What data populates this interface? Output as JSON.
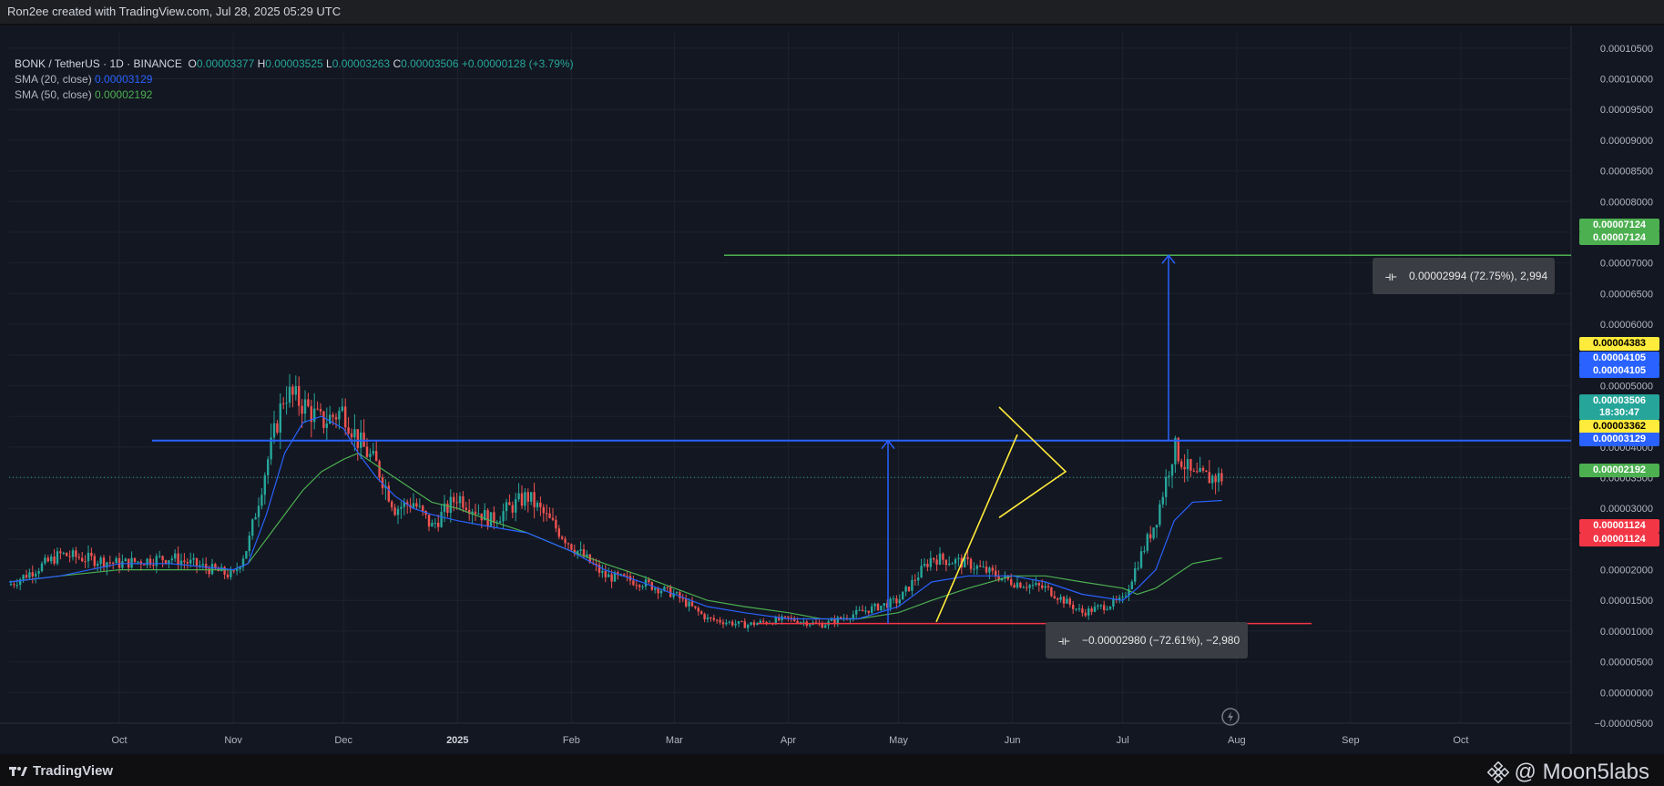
{
  "header": {
    "title": "Ron2ee created with TradingView.com, Jul 28, 2025 05:29 UTC"
  },
  "legend": {
    "symbol": "BONK / TetherUS · 1D · BINANCE",
    "o_label": "O",
    "o_value": "0.00003377",
    "h_label": "H",
    "h_value": "0.00003525",
    "l_label": "L",
    "l_value": "0.00003263",
    "c_label": "C",
    "c_value": "0.00003506",
    "change": "+0.00000128 (+3.79%)",
    "sma20_label": "SMA (20, close)",
    "sma20_value": "0.00003129",
    "sma50_label": "SMA (50, close)",
    "sma50_value": "0.00002192"
  },
  "colors": {
    "up": "#26a69a",
    "down": "#ef5350",
    "sma20": "#2962ff",
    "sma50": "#4caf50",
    "blue_line": "#2962ff",
    "green_line": "#4caf50",
    "red_line": "#f23645",
    "triangle": "#ffeb3b"
  },
  "price_tags": [
    {
      "text": "0.00007124",
      "bg": "#4caf50",
      "fg": "#ffffff"
    },
    {
      "text": "0.00007124",
      "bg": "#4caf50",
      "fg": "#ffffff"
    },
    {
      "text": "0.00004383",
      "bg": "#ffeb3b",
      "fg": "#000000"
    },
    {
      "text": "0.00004105",
      "bg": "#2962ff",
      "fg": "#ffffff"
    },
    {
      "text": "0.00004105",
      "bg": "#2962ff",
      "fg": "#ffffff"
    },
    {
      "text": "0.00003506",
      "bg": "#26a69a",
      "fg": "#ffffff"
    },
    {
      "text": "18:30:47",
      "bg": "#26a69a",
      "fg": "#ffffff"
    },
    {
      "text": "0.00003362",
      "bg": "#ffeb3b",
      "fg": "#000000"
    },
    {
      "text": "0.00003129",
      "bg": "#2962ff",
      "fg": "#ffffff"
    },
    {
      "text": "0.00002192",
      "bg": "#4caf50",
      "fg": "#ffffff"
    },
    {
      "text": "0.00001124",
      "bg": "#f23645",
      "fg": "#ffffff"
    },
    {
      "text": "0.00001124",
      "bg": "#f23645",
      "fg": "#ffffff"
    }
  ],
  "measure_up": {
    "text": "0.00002994 (72.75%), 2,994"
  },
  "measure_down": {
    "text": "−0.00002980 (−72.61%), −2,980"
  },
  "chart_data": {
    "type": "candlestick",
    "y_ticks": [
      "0.00010500",
      "0.00010000",
      "0.00009500",
      "0.00009000",
      "0.00008500",
      "0.00008000",
      "0.00007500",
      "0.00007000",
      "0.00006500",
      "0.00006000",
      "0.00005500",
      "0.00005000",
      "0.00004500",
      "0.00004000",
      "0.00003500",
      "0.00003000",
      "0.00002500",
      "0.00002000",
      "0.00001500",
      "0.00001000",
      "0.00000500",
      "0.00000000",
      "−0.00000500"
    ],
    "x_ticks": [
      "Oct",
      "Nov",
      "Dec",
      "2025",
      "Feb",
      "Mar",
      "Apr",
      "May",
      "Jun",
      "Jul",
      "Aug",
      "Sep",
      "Oct"
    ],
    "ylim": [
      -5e-06,
      0.0001075
    ],
    "x_dates": [
      "2024-09-01",
      "2024-09-15",
      "2024-10-01",
      "2024-10-15",
      "2024-11-01",
      "2024-11-05",
      "2024-11-10",
      "2024-11-15",
      "2024-11-20",
      "2024-11-25",
      "2024-12-01",
      "2024-12-05",
      "2024-12-10",
      "2024-12-15",
      "2024-12-20",
      "2024-12-25",
      "2025-01-01",
      "2025-01-10",
      "2025-01-20",
      "2025-02-01",
      "2025-02-10",
      "2025-02-20",
      "2025-03-01",
      "2025-03-10",
      "2025-03-20",
      "2025-04-01",
      "2025-04-10",
      "2025-04-20",
      "2025-05-01",
      "2025-05-10",
      "2025-05-20",
      "2025-06-01",
      "2025-06-10",
      "2025-06-20",
      "2025-07-01",
      "2025-07-05",
      "2025-07-10",
      "2025-07-15",
      "2025-07-20",
      "2025-07-28"
    ],
    "close": [
      1.75e-05,
      2.25e-05,
      2.1e-05,
      2.2e-05,
      1.9e-05,
      2.4e-05,
      3.7e-05,
      4.9e-05,
      4.7e-05,
      4.4e-05,
      4.6e-05,
      4.1e-05,
      3.7e-05,
      3e-05,
      3.1e-05,
      2.7e-05,
      3.2e-05,
      2.8e-05,
      3.2e-05,
      2.4e-05,
      1.9e-05,
      1.8e-05,
      1.6e-05,
      1.2e-05,
      1.1e-05,
      1.2e-05,
      1.1e-05,
      1.3e-05,
      1.5e-05,
      2.2e-05,
      2.1e-05,
      1.8e-05,
      1.7e-05,
      1.3e-05,
      1.5e-05,
      2.1e-05,
      2.8e-05,
      4e-05,
      3.5e-05,
      3.506e-05
    ],
    "sma20": [
      1.8e-05,
      1.9e-05,
      2.1e-05,
      2.1e-05,
      2e-05,
      2.1e-05,
      2.9e-05,
      3.9e-05,
      4.4e-05,
      4.5e-05,
      4.3e-05,
      3.9e-05,
      3.5e-05,
      3.2e-05,
      3e-05,
      2.9e-05,
      2.8e-05,
      2.7e-05,
      2.6e-05,
      2.3e-05,
      2e-05,
      1.8e-05,
      1.6e-05,
      1.4e-05,
      1.3e-05,
      1.2e-05,
      1.2e-05,
      1.2e-05,
      1.4e-05,
      1.8e-05,
      1.9e-05,
      1.9e-05,
      1.8e-05,
      1.6e-05,
      1.5e-05,
      1.7e-05,
      2e-05,
      2.8e-05,
      3.1e-05,
      3.129e-05
    ],
    "sma50": [
      1.8e-05,
      1.9e-05,
      2e-05,
      2e-05,
      2e-05,
      2.1e-05,
      2.5e-05,
      2.9e-05,
      3.3e-05,
      3.6e-05,
      3.8e-05,
      3.9e-05,
      3.7e-05,
      3.5e-05,
      3.3e-05,
      3.1e-05,
      3e-05,
      2.8e-05,
      2.6e-05,
      2.3e-05,
      2.1e-05,
      1.9e-05,
      1.7e-05,
      1.5e-05,
      1.4e-05,
      1.3e-05,
      1.2e-05,
      1.2e-05,
      1.3e-05,
      1.5e-05,
      1.7e-05,
      1.9e-05,
      1.9e-05,
      1.8e-05,
      1.7e-05,
      1.6e-05,
      1.7e-05,
      1.9e-05,
      2.1e-05,
      2.192e-05
    ],
    "levels": {
      "blue_resistance": 4.105e-05,
      "red_support": 1.124e-05,
      "green_target": 7.124e-05
    }
  },
  "watermark": {
    "text": "@ Moon5labs"
  },
  "brand": {
    "text": "TradingView"
  }
}
